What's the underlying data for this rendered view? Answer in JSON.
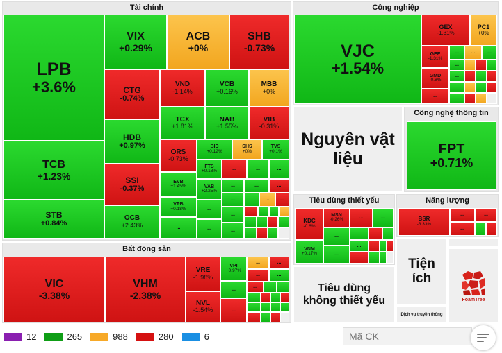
{
  "sections": {
    "finance": "Tài chính",
    "industry": "Công nghiệp",
    "real_estate": "Bất động sản",
    "it": "Công nghệ thông tin",
    "energy": "Năng lượng",
    "staples": "Tiêu dùng thiết yếu",
    "materials": "Nguyên vật liệu",
    "discretionary": "Tiêu dùng không thiết yếu",
    "utilities": "Tiện ích",
    "telecom": "Dịch vụ truyền thông"
  },
  "tiles": {
    "LPB": {
      "s": "LPB",
      "p": "+3.6%"
    },
    "TCB": {
      "s": "TCB",
      "p": "+1.23%"
    },
    "STB": {
      "s": "STB",
      "p": "+0.84%"
    },
    "VIX": {
      "s": "VIX",
      "p": "+0.29%"
    },
    "ACB": {
      "s": "ACB",
      "p": "+0%"
    },
    "SHB": {
      "s": "SHB",
      "p": "-0.73%"
    },
    "CTG": {
      "s": "CTG",
      "p": "-0.74%"
    },
    "VND": {
      "s": "VND",
      "p": "-1.14%"
    },
    "VCB": {
      "s": "VCB",
      "p": "+0.16%"
    },
    "MBB": {
      "s": "MBB",
      "p": "+0%"
    },
    "HDB": {
      "s": "HDB",
      "p": "+0.97%"
    },
    "TCX": {
      "s": "TCX",
      "p": "+1.81%"
    },
    "NAB": {
      "s": "NAB",
      "p": "+1.55%"
    },
    "VIB": {
      "s": "VIB",
      "p": "-0.31%"
    },
    "SSI": {
      "s": "SSI",
      "p": "-0.37%"
    },
    "ORS": {
      "s": "ORS",
      "p": "-0.73%"
    },
    "BID": {
      "s": "BID",
      "p": "+0.12%"
    },
    "SHS": {
      "s": "SHS",
      "p": "+0%"
    },
    "TVS": {
      "s": "TVS",
      "p": "+0.1%"
    },
    "OCB": {
      "s": "OCB",
      "p": "+2.43%"
    },
    "EVB": {
      "s": "EVB",
      "p": "+1.45%"
    },
    "FTS": {
      "s": "FTS",
      "p": "+0.18%"
    },
    "VAB": {
      "s": "VAB",
      "p": "+2.25%"
    },
    "VPB": {
      "s": "VPB",
      "p": "+0.18%"
    },
    "VJC": {
      "s": "VJC",
      "p": "+1.54%"
    },
    "GEX": {
      "s": "GEX",
      "p": "-1.31%"
    },
    "PC1": {
      "s": "PC1",
      "p": "+0%"
    },
    "GEE": {
      "s": "GEE",
      "p": "-1.31%"
    },
    "GMD": {
      "s": "GMD",
      "p": "-0.8%"
    },
    "FPT": {
      "s": "FPT",
      "p": "+0.71%"
    },
    "KDC": {
      "s": "KDC",
      "p": "-0.6%"
    },
    "MSN": {
      "s": "MSN",
      "p": "-0.26%"
    },
    "VNM": {
      "s": "VNM",
      "p": "+0.17%"
    },
    "BSR": {
      "s": "BSR",
      "p": "-3.33%"
    },
    "VIC": {
      "s": "VIC",
      "p": "-3.38%"
    },
    "VHM": {
      "s": "VHM",
      "p": "-2.38%"
    },
    "VRE": {
      "s": "VRE",
      "p": "-1.98%"
    },
    "VPI": {
      "s": "VPI",
      "p": "+0.97%"
    },
    "NVL": {
      "s": "NVL",
      "p": "-1.54%"
    }
  },
  "ellipsis": "...",
  "legend": [
    {
      "count": "12",
      "color": "#8a1fb0"
    },
    {
      "count": "265",
      "color": "#0f9e16"
    },
    {
      "count": "988",
      "color": "#f7a928"
    },
    {
      "count": "280",
      "color": "#d51111"
    },
    {
      "count": "6",
      "color": "#1a8fe3"
    }
  ],
  "search": {
    "placeholder": "Mã CK"
  },
  "logo": {
    "text": "FoamTree"
  },
  "icons": {
    "menu": "menu-icon",
    "logo": "foamtree-logo-icon"
  }
}
